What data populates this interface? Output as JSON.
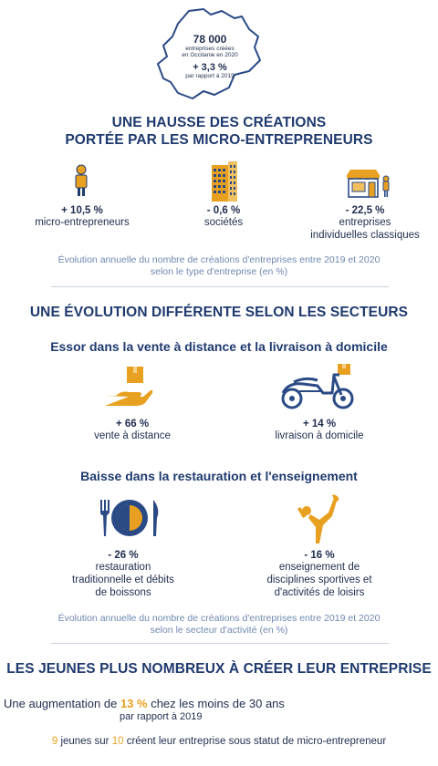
{
  "colors": {
    "navy": "#1f3a6e",
    "orange": "#e8a020",
    "note": "#6f88b0"
  },
  "map": {
    "total": "78 000",
    "total_caption_1": "entreprises créées",
    "total_caption_2": "en Occitanie en 2020",
    "growth": "+ 3,3 %",
    "growth_caption": "par rapport à 2019"
  },
  "section1": {
    "title_line1": "UNE HAUSSE DES CRÉATIONS",
    "title_line2": "PORTÉE PAR LES MICRO-ENTREPRENEURS",
    "items": [
      {
        "icon": "person-icon",
        "value": "+ 10,5 %",
        "label_1": "micro-entrepreneurs",
        "label_2": ""
      },
      {
        "icon": "building-icon",
        "value": "- 0,6 %",
        "label_1": "sociétés",
        "label_2": ""
      },
      {
        "icon": "shop-icon",
        "value": "- 22,5 %",
        "label_1": "entreprises",
        "label_2": "individuelles classiques"
      }
    ],
    "note_1": "Évolution annuelle du nombre de créations d'entreprises entre 2019 et 2020",
    "note_2": "selon le type d'entreprise (en %)"
  },
  "section2": {
    "title": "UNE ÉVOLUTION DIFFÉRENTE SELON LES SECTEURS",
    "sub1": "Essor dans la vente à distance et la livraison à domicile",
    "growth_items": [
      {
        "icon": "hand-package-icon",
        "value": "+ 66 %",
        "label_1": "vente à distance"
      },
      {
        "icon": "delivery-scooter-icon",
        "value": "+ 14 %",
        "label_1": "livraison à domicile"
      }
    ],
    "sub2": "Baisse dans la restauration et l'enseignement",
    "decline_items": [
      {
        "icon": "plate-cutlery-icon",
        "value": "- 26 %",
        "label_1": "restauration",
        "label_2": "traditionnelle et débits",
        "label_3": "de boissons"
      },
      {
        "icon": "yoga-person-icon",
        "value": "- 16 %",
        "label_1": "enseignement de",
        "label_2": "disciplines sportives et",
        "label_3": "d'activités de loisirs"
      }
    ],
    "note_1": "Évolution annuelle du nombre de créations d'entreprises entre 2019 et 2020",
    "note_2": "selon le secteur d'activité (en %)"
  },
  "section3": {
    "title": "LES JEUNES PLUS NOMBREUX À CRÉER LEUR ENTREPRISE",
    "line_prefix": "Une augmentation de",
    "line_value": "13 %",
    "line_suffix": "chez les moins de 30 ans",
    "line_caption": "par rapport à 2019",
    "ratio_num": "9",
    "ratio_mid": "jeunes sur",
    "ratio_den": "10",
    "ratio_suffix": "créent leur entreprise sous statut de micro-entrepreneur"
  }
}
